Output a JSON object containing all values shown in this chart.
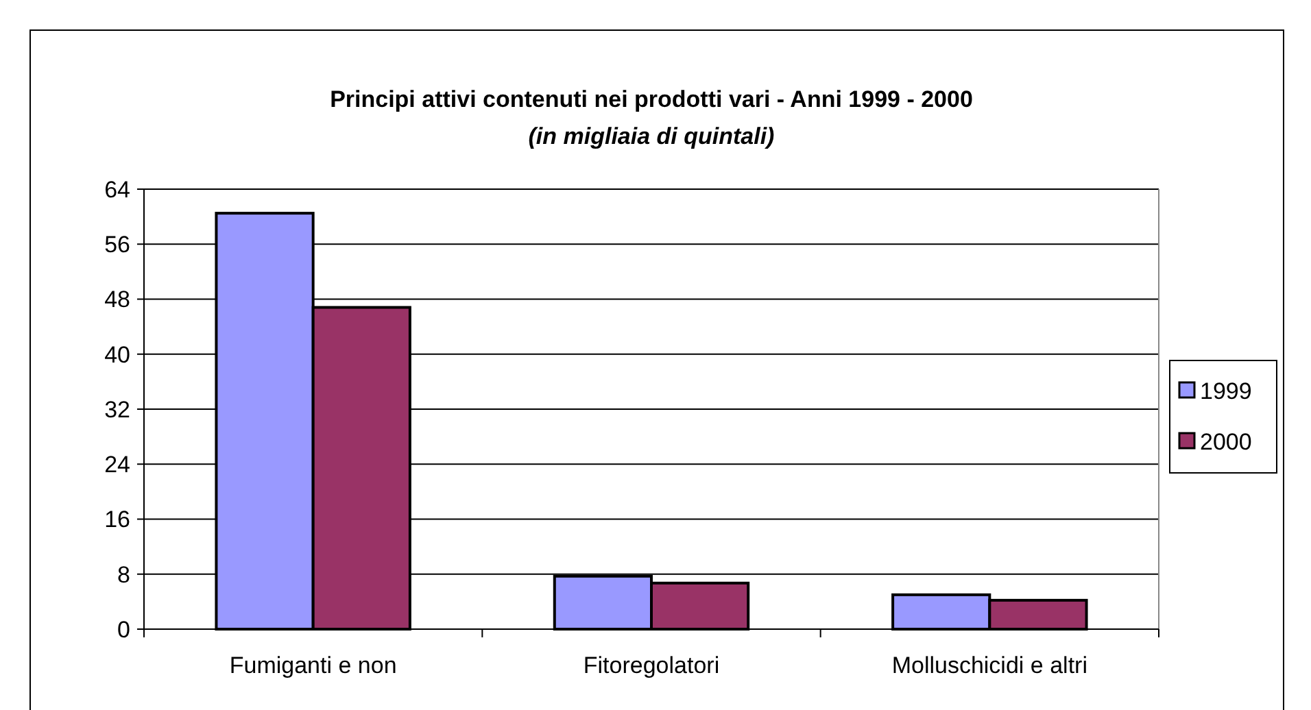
{
  "chart_data": {
    "type": "bar",
    "title": "Principi attivi contenuti nei prodotti vari - Anni 1999 - 2000",
    "subtitle": "(in migliaia di quintali)",
    "categories": [
      "Fumiganti e non",
      "Fitoregolatori",
      "Molluschicidi e altri"
    ],
    "series": [
      {
        "name": "1999",
        "color": "#9999ff",
        "values": [
          60.5,
          7.7,
          5.0
        ]
      },
      {
        "name": "2000",
        "color": "#993366",
        "values": [
          46.8,
          6.7,
          4.2
        ]
      }
    ],
    "ylim": [
      0,
      64
    ],
    "yticks": [
      0,
      8,
      16,
      24,
      32,
      40,
      48,
      56,
      64
    ],
    "grid": "y",
    "legend": "right"
  }
}
